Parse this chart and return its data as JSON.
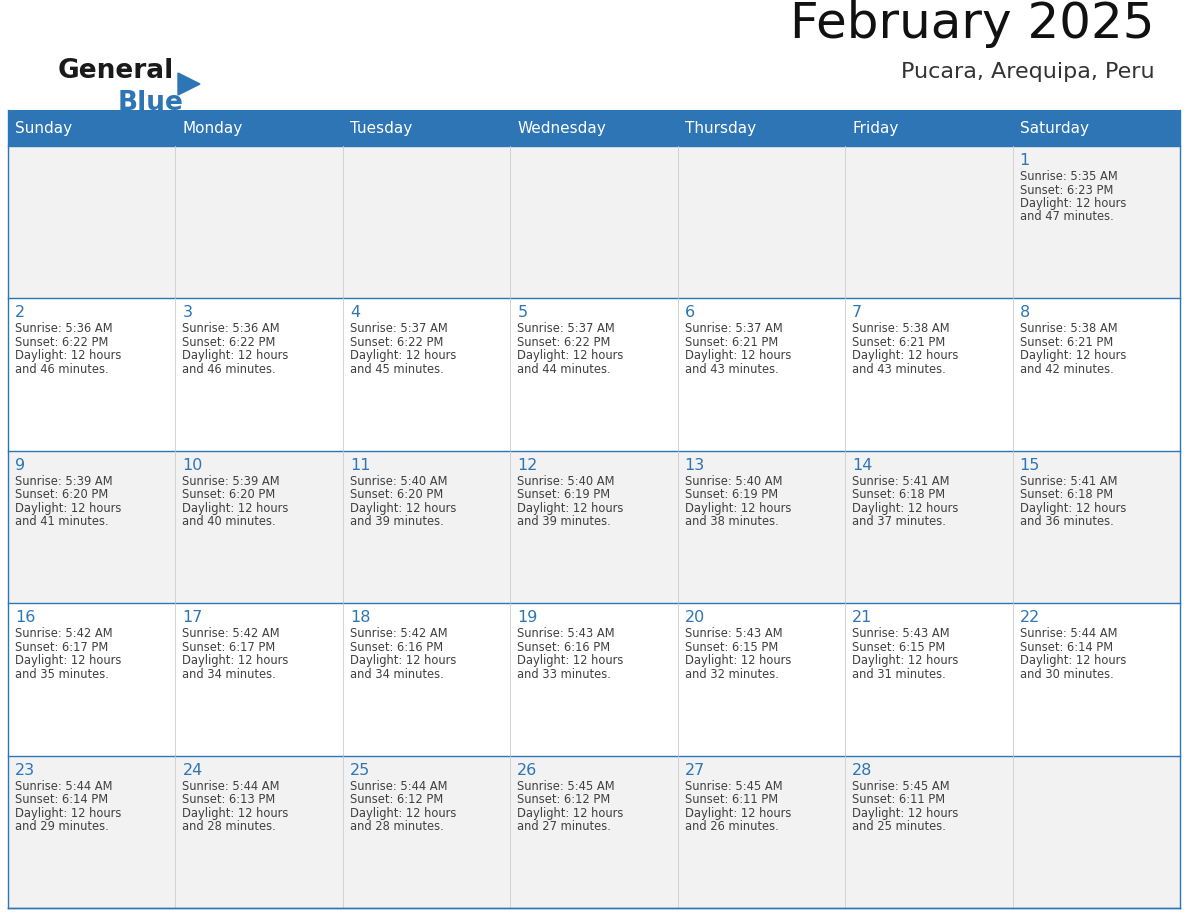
{
  "title": "February 2025",
  "subtitle": "Pucara, Arequipa, Peru",
  "header_color": "#2e75b6",
  "header_text_color": "#ffffff",
  "day_names": [
    "Sunday",
    "Monday",
    "Tuesday",
    "Wednesday",
    "Thursday",
    "Friday",
    "Saturday"
  ],
  "background_color": "#ffffff",
  "row_alt_color": "#f2f2f2",
  "border_color": "#2e75b6",
  "cell_border_color": "#cccccc",
  "day_num_color": "#2e75b6",
  "text_color": "#404040",
  "logo_general_color": "#1a1a1a",
  "logo_blue_color": "#2e75b6",
  "calendar_data": [
    [
      null,
      null,
      null,
      null,
      null,
      null,
      {
        "day": 1,
        "sunrise": "5:35 AM",
        "sunset": "6:23 PM",
        "daylight_suffix": "47 minutes."
      }
    ],
    [
      {
        "day": 2,
        "sunrise": "5:36 AM",
        "sunset": "6:22 PM",
        "daylight_suffix": "46 minutes."
      },
      {
        "day": 3,
        "sunrise": "5:36 AM",
        "sunset": "6:22 PM",
        "daylight_suffix": "46 minutes."
      },
      {
        "day": 4,
        "sunrise": "5:37 AM",
        "sunset": "6:22 PM",
        "daylight_suffix": "45 minutes."
      },
      {
        "day": 5,
        "sunrise": "5:37 AM",
        "sunset": "6:22 PM",
        "daylight_suffix": "44 minutes."
      },
      {
        "day": 6,
        "sunrise": "5:37 AM",
        "sunset": "6:21 PM",
        "daylight_suffix": "43 minutes."
      },
      {
        "day": 7,
        "sunrise": "5:38 AM",
        "sunset": "6:21 PM",
        "daylight_suffix": "43 minutes."
      },
      {
        "day": 8,
        "sunrise": "5:38 AM",
        "sunset": "6:21 PM",
        "daylight_suffix": "42 minutes."
      }
    ],
    [
      {
        "day": 9,
        "sunrise": "5:39 AM",
        "sunset": "6:20 PM",
        "daylight_suffix": "41 minutes."
      },
      {
        "day": 10,
        "sunrise": "5:39 AM",
        "sunset": "6:20 PM",
        "daylight_suffix": "40 minutes."
      },
      {
        "day": 11,
        "sunrise": "5:40 AM",
        "sunset": "6:20 PM",
        "daylight_suffix": "39 minutes."
      },
      {
        "day": 12,
        "sunrise": "5:40 AM",
        "sunset": "6:19 PM",
        "daylight_suffix": "39 minutes."
      },
      {
        "day": 13,
        "sunrise": "5:40 AM",
        "sunset": "6:19 PM",
        "daylight_suffix": "38 minutes."
      },
      {
        "day": 14,
        "sunrise": "5:41 AM",
        "sunset": "6:18 PM",
        "daylight_suffix": "37 minutes."
      },
      {
        "day": 15,
        "sunrise": "5:41 AM",
        "sunset": "6:18 PM",
        "daylight_suffix": "36 minutes."
      }
    ],
    [
      {
        "day": 16,
        "sunrise": "5:42 AM",
        "sunset": "6:17 PM",
        "daylight_suffix": "35 minutes."
      },
      {
        "day": 17,
        "sunrise": "5:42 AM",
        "sunset": "6:17 PM",
        "daylight_suffix": "34 minutes."
      },
      {
        "day": 18,
        "sunrise": "5:42 AM",
        "sunset": "6:16 PM",
        "daylight_suffix": "34 minutes."
      },
      {
        "day": 19,
        "sunrise": "5:43 AM",
        "sunset": "6:16 PM",
        "daylight_suffix": "33 minutes."
      },
      {
        "day": 20,
        "sunrise": "5:43 AM",
        "sunset": "6:15 PM",
        "daylight_suffix": "32 minutes."
      },
      {
        "day": 21,
        "sunrise": "5:43 AM",
        "sunset": "6:15 PM",
        "daylight_suffix": "31 minutes."
      },
      {
        "day": 22,
        "sunrise": "5:44 AM",
        "sunset": "6:14 PM",
        "daylight_suffix": "30 minutes."
      }
    ],
    [
      {
        "day": 23,
        "sunrise": "5:44 AM",
        "sunset": "6:14 PM",
        "daylight_suffix": "29 minutes."
      },
      {
        "day": 24,
        "sunrise": "5:44 AM",
        "sunset": "6:13 PM",
        "daylight_suffix": "28 minutes."
      },
      {
        "day": 25,
        "sunrise": "5:44 AM",
        "sunset": "6:12 PM",
        "daylight_suffix": "28 minutes."
      },
      {
        "day": 26,
        "sunrise": "5:45 AM",
        "sunset": "6:12 PM",
        "daylight_suffix": "27 minutes."
      },
      {
        "day": 27,
        "sunrise": "5:45 AM",
        "sunset": "6:11 PM",
        "daylight_suffix": "26 minutes."
      },
      {
        "day": 28,
        "sunrise": "5:45 AM",
        "sunset": "6:11 PM",
        "daylight_suffix": "25 minutes."
      },
      null
    ]
  ]
}
